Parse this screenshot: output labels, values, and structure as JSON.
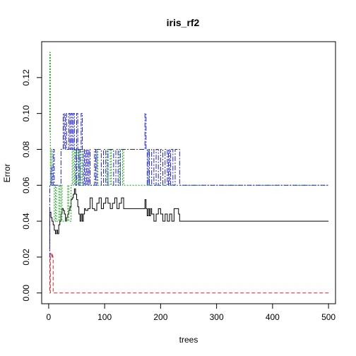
{
  "chart_data": {
    "type": "line",
    "title": "iris_rf2",
    "xlabel": "trees",
    "ylabel": "Error",
    "xlim": [
      -12.5,
      512.5
    ],
    "ylim": [
      -0.006,
      0.14
    ],
    "x_ticks": [
      0,
      100,
      200,
      300,
      400,
      500
    ],
    "x_tick_labels": [
      "0",
      "100",
      "200",
      "300",
      "400",
      "500"
    ],
    "y_ticks": [
      0.0,
      0.02,
      0.04,
      0.06,
      0.08,
      0.1,
      0.12
    ],
    "y_tick_labels": [
      "0.00",
      "0.02",
      "0.04",
      "0.06",
      "0.08",
      "0.10",
      "0.12"
    ],
    "grid": false,
    "series": [
      {
        "color": "#000000",
        "dash": "none",
        "points": [
          [
            1,
            0.025
          ],
          [
            2,
            0.045
          ],
          [
            4,
            0.042
          ],
          [
            6,
            0.04
          ],
          [
            8,
            0.038
          ],
          [
            10,
            0.035
          ],
          [
            12,
            0.033
          ],
          [
            14,
            0.035
          ],
          [
            16,
            0.033
          ],
          [
            18,
            0.038
          ],
          [
            20,
            0.04
          ],
          [
            22,
            0.044
          ],
          [
            24,
            0.047
          ],
          [
            26,
            0.046
          ],
          [
            28,
            0.044
          ],
          [
            30,
            0.04
          ],
          [
            32,
            0.042
          ],
          [
            34,
            0.044
          ],
          [
            36,
            0.046
          ],
          [
            38,
            0.048
          ],
          [
            40,
            0.052
          ],
          [
            42,
            0.053
          ],
          [
            44,
            0.055
          ],
          [
            46,
            0.058
          ],
          [
            48,
            0.055
          ],
          [
            50,
            0.052
          ],
          [
            52,
            0.048
          ],
          [
            54,
            0.044
          ],
          [
            56,
            0.04
          ],
          [
            58,
            0.044
          ],
          [
            60,
            0.04
          ],
          [
            62,
            0.044
          ],
          [
            64,
            0.047
          ],
          [
            66,
            0.046
          ],
          [
            70,
            0.047
          ],
          [
            74,
            0.053
          ],
          [
            78,
            0.047
          ],
          [
            82,
            0.046
          ],
          [
            86,
            0.05
          ],
          [
            90,
            0.053
          ],
          [
            94,
            0.047
          ],
          [
            98,
            0.05
          ],
          [
            102,
            0.053
          ],
          [
            106,
            0.05
          ],
          [
            110,
            0.047
          ],
          [
            114,
            0.05
          ],
          [
            118,
            0.053
          ],
          [
            122,
            0.047
          ],
          [
            126,
            0.05
          ],
          [
            130,
            0.053
          ],
          [
            134,
            0.047
          ],
          [
            140,
            0.047
          ],
          [
            150,
            0.047
          ],
          [
            160,
            0.047
          ],
          [
            170,
            0.047
          ],
          [
            172,
            0.052
          ],
          [
            174,
            0.047
          ],
          [
            176,
            0.043
          ],
          [
            178,
            0.047
          ],
          [
            180,
            0.043
          ],
          [
            182,
            0.047
          ],
          [
            184,
            0.044
          ],
          [
            188,
            0.04
          ],
          [
            192,
            0.044
          ],
          [
            196,
            0.047
          ],
          [
            200,
            0.044
          ],
          [
            204,
            0.04
          ],
          [
            208,
            0.044
          ],
          [
            212,
            0.04
          ],
          [
            216,
            0.044
          ],
          [
            220,
            0.04
          ],
          [
            224,
            0.047
          ],
          [
            228,
            0.047
          ],
          [
            232,
            0.044
          ],
          [
            234,
            0.04
          ],
          [
            240,
            0.04
          ],
          [
            300,
            0.04
          ],
          [
            400,
            0.04
          ],
          [
            500,
            0.04
          ]
        ]
      },
      {
        "color": "#df2020",
        "dash": "5,3",
        "points": [
          [
            1,
            0.025
          ],
          [
            2,
            0.0
          ],
          [
            3,
            0.022
          ],
          [
            4,
            0.02
          ],
          [
            5,
            0.02
          ],
          [
            6,
            0.022
          ],
          [
            7,
            0.02
          ],
          [
            8,
            0.0
          ],
          [
            10,
            0.0
          ],
          [
            50,
            0.0
          ],
          [
            100,
            0.0
          ],
          [
            200,
            0.0
          ],
          [
            300,
            0.0
          ],
          [
            400,
            0.0
          ],
          [
            500,
            0.0
          ]
        ]
      },
      {
        "color": "#0fa10f",
        "dash": "2,2",
        "points": [
          [
            1,
            0.09
          ],
          [
            2,
            0.134
          ],
          [
            3,
            0.06
          ],
          [
            4,
            0.08
          ],
          [
            6,
            0.06
          ],
          [
            8,
            0.06
          ],
          [
            10,
            0.04
          ],
          [
            12,
            0.06
          ],
          [
            14,
            0.04
          ],
          [
            16,
            0.04
          ],
          [
            18,
            0.06
          ],
          [
            20,
            0.04
          ],
          [
            22,
            0.06
          ],
          [
            24,
            0.04
          ],
          [
            26,
            0.04
          ],
          [
            30,
            0.04
          ],
          [
            34,
            0.06
          ],
          [
            36,
            0.04
          ],
          [
            40,
            0.06
          ],
          [
            42,
            0.08
          ],
          [
            44,
            0.06
          ],
          [
            46,
            0.08
          ],
          [
            48,
            0.06
          ],
          [
            50,
            0.08
          ],
          [
            52,
            0.06
          ],
          [
            54,
            0.08
          ],
          [
            56,
            0.06
          ],
          [
            58,
            0.08
          ],
          [
            60,
            0.06
          ],
          [
            64,
            0.06
          ],
          [
            70,
            0.06
          ],
          [
            80,
            0.06
          ],
          [
            86,
            0.08
          ],
          [
            88,
            0.06
          ],
          [
            100,
            0.06
          ],
          [
            104,
            0.08
          ],
          [
            106,
            0.06
          ],
          [
            110,
            0.08
          ],
          [
            112,
            0.06
          ],
          [
            120,
            0.06
          ],
          [
            126,
            0.08
          ],
          [
            128,
            0.06
          ],
          [
            132,
            0.08
          ],
          [
            134,
            0.06
          ],
          [
            150,
            0.06
          ],
          [
            176,
            0.06
          ],
          [
            178,
            0.08
          ],
          [
            180,
            0.06
          ],
          [
            200,
            0.06
          ],
          [
            300,
            0.06
          ],
          [
            400,
            0.06
          ],
          [
            500,
            0.06
          ]
        ]
      },
      {
        "color": "#2020d0",
        "dash": "7,2,2,2",
        "points": [
          [
            1,
            0.02
          ],
          [
            2,
            0.06
          ],
          [
            4,
            0.07
          ],
          [
            6,
            0.06
          ],
          [
            8,
            0.08
          ],
          [
            10,
            0.06
          ],
          [
            12,
            0.06
          ],
          [
            16,
            0.06
          ],
          [
            20,
            0.06
          ],
          [
            22,
            0.08
          ],
          [
            24,
            0.08
          ],
          [
            26,
            0.1
          ],
          [
            28,
            0.08
          ],
          [
            30,
            0.1
          ],
          [
            32,
            0.08
          ],
          [
            34,
            0.08
          ],
          [
            36,
            0.1
          ],
          [
            38,
            0.08
          ],
          [
            40,
            0.1
          ],
          [
            42,
            0.08
          ],
          [
            44,
            0.1
          ],
          [
            46,
            0.08
          ],
          [
            48,
            0.06
          ],
          [
            50,
            0.1
          ],
          [
            52,
            0.08
          ],
          [
            54,
            0.06
          ],
          [
            56,
            0.08
          ],
          [
            58,
            0.1
          ],
          [
            60,
            0.08
          ],
          [
            62,
            0.06
          ],
          [
            64,
            0.08
          ],
          [
            66,
            0.06
          ],
          [
            68,
            0.08
          ],
          [
            70,
            0.06
          ],
          [
            72,
            0.08
          ],
          [
            74,
            0.06
          ],
          [
            78,
            0.06
          ],
          [
            82,
            0.08
          ],
          [
            84,
            0.06
          ],
          [
            86,
            0.08
          ],
          [
            90,
            0.08
          ],
          [
            94,
            0.06
          ],
          [
            98,
            0.08
          ],
          [
            102,
            0.06
          ],
          [
            106,
            0.08
          ],
          [
            110,
            0.08
          ],
          [
            116,
            0.06
          ],
          [
            120,
            0.08
          ],
          [
            124,
            0.06
          ],
          [
            128,
            0.08
          ],
          [
            140,
            0.08
          ],
          [
            150,
            0.08
          ],
          [
            160,
            0.08
          ],
          [
            170,
            0.08
          ],
          [
            172,
            0.1
          ],
          [
            174,
            0.08
          ],
          [
            176,
            0.06
          ],
          [
            178,
            0.08
          ],
          [
            180,
            0.06
          ],
          [
            184,
            0.08
          ],
          [
            188,
            0.06
          ],
          [
            192,
            0.08
          ],
          [
            196,
            0.06
          ],
          [
            200,
            0.08
          ],
          [
            204,
            0.06
          ],
          [
            208,
            0.08
          ],
          [
            212,
            0.06
          ],
          [
            214,
            0.08
          ],
          [
            216,
            0.06
          ],
          [
            218,
            0.08
          ],
          [
            222,
            0.06
          ],
          [
            226,
            0.08
          ],
          [
            228,
            0.08
          ],
          [
            232,
            0.08
          ],
          [
            234,
            0.06
          ],
          [
            240,
            0.06
          ],
          [
            300,
            0.06
          ],
          [
            400,
            0.06
          ],
          [
            500,
            0.06
          ]
        ]
      }
    ]
  }
}
